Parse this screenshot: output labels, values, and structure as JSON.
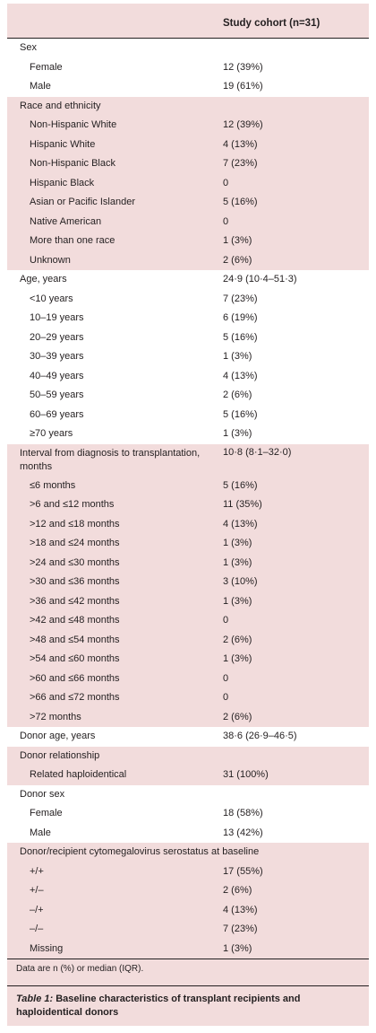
{
  "table": {
    "column_header": "Study cohort (n=31)",
    "rows": [
      {
        "label": "Sex",
        "value": "",
        "indent": false,
        "bg": "white"
      },
      {
        "label": "Female",
        "value": "12 (39%)",
        "indent": true,
        "bg": "white"
      },
      {
        "label": "Male",
        "value": "19 (61%)",
        "indent": true,
        "bg": "white"
      },
      {
        "label": "Race and ethnicity",
        "value": "",
        "indent": false,
        "bg": "pink"
      },
      {
        "label": "Non-Hispanic White",
        "value": "12 (39%)",
        "indent": true,
        "bg": "pink"
      },
      {
        "label": "Hispanic White",
        "value": "4 (13%)",
        "indent": true,
        "bg": "pink"
      },
      {
        "label": "Non-Hispanic Black",
        "value": "7 (23%)",
        "indent": true,
        "bg": "pink"
      },
      {
        "label": "Hispanic Black",
        "value": "0",
        "indent": true,
        "bg": "pink"
      },
      {
        "label": "Asian or Pacific Islander",
        "value": "5 (16%)",
        "indent": true,
        "bg": "pink"
      },
      {
        "label": "Native American",
        "value": "0",
        "indent": true,
        "bg": "pink"
      },
      {
        "label": "More than one race",
        "value": "1 (3%)",
        "indent": true,
        "bg": "pink"
      },
      {
        "label": "Unknown",
        "value": "2 (6%)",
        "indent": true,
        "bg": "pink"
      },
      {
        "label": "Age, years",
        "value": "24·9 (10·4–51·3)",
        "indent": false,
        "bg": "white"
      },
      {
        "label": "<10 years",
        "value": "7 (23%)",
        "indent": true,
        "bg": "white"
      },
      {
        "label": "10–19 years",
        "value": "6 (19%)",
        "indent": true,
        "bg": "white"
      },
      {
        "label": "20–29 years",
        "value": "5 (16%)",
        "indent": true,
        "bg": "white"
      },
      {
        "label": "30–39 years",
        "value": "1 (3%)",
        "indent": true,
        "bg": "white"
      },
      {
        "label": "40–49 years",
        "value": "4 (13%)",
        "indent": true,
        "bg": "white"
      },
      {
        "label": "50–59 years",
        "value": "2 (6%)",
        "indent": true,
        "bg": "white"
      },
      {
        "label": "60–69 years",
        "value": "5 (16%)",
        "indent": true,
        "bg": "white"
      },
      {
        "label": "≥70 years",
        "value": "1 (3%)",
        "indent": true,
        "bg": "white"
      },
      {
        "label": "Interval from diagnosis to transplantation, months",
        "value": "10·8 (8·1–32·0)",
        "indent": false,
        "bg": "pink",
        "tall": true
      },
      {
        "label": "≤6 months",
        "value": "5 (16%)",
        "indent": true,
        "bg": "pink"
      },
      {
        "label": ">6 and ≤12 months",
        "value": "11 (35%)",
        "indent": true,
        "bg": "pink"
      },
      {
        "label": ">12 and ≤18 months",
        "value": "4 (13%)",
        "indent": true,
        "bg": "pink"
      },
      {
        "label": ">18 and ≤24 months",
        "value": "1 (3%)",
        "indent": true,
        "bg": "pink"
      },
      {
        "label": ">24 and ≤30 months",
        "value": "1 (3%)",
        "indent": true,
        "bg": "pink"
      },
      {
        "label": ">30 and ≤36 months",
        "value": "3 (10%)",
        "indent": true,
        "bg": "pink"
      },
      {
        "label": ">36 and ≤42 months",
        "value": "1 (3%)",
        "indent": true,
        "bg": "pink"
      },
      {
        "label": ">42 and ≤48 months",
        "value": "0",
        "indent": true,
        "bg": "pink"
      },
      {
        "label": ">48 and ≤54 months",
        "value": "2 (6%)",
        "indent": true,
        "bg": "pink"
      },
      {
        "label": ">54 and ≤60 months",
        "value": "1 (3%)",
        "indent": true,
        "bg": "pink"
      },
      {
        "label": ">60 and ≤66 months",
        "value": "0",
        "indent": true,
        "bg": "pink"
      },
      {
        "label": ">66 and ≤72 months",
        "value": "0",
        "indent": true,
        "bg": "pink"
      },
      {
        "label": ">72 months",
        "value": "2 (6%)",
        "indent": true,
        "bg": "pink"
      },
      {
        "label": "Donor age, years",
        "value": "38·6 (26·9–46·5)",
        "indent": false,
        "bg": "white"
      },
      {
        "label": "Donor relationship",
        "value": "",
        "indent": false,
        "bg": "pink"
      },
      {
        "label": "Related haploidentical",
        "value": "31 (100%)",
        "indent": true,
        "bg": "pink"
      },
      {
        "label": "Donor sex",
        "value": "",
        "indent": false,
        "bg": "white"
      },
      {
        "label": "Female",
        "value": "18 (58%)",
        "indent": true,
        "bg": "white"
      },
      {
        "label": "Male",
        "value": "13 (42%)",
        "indent": true,
        "bg": "white"
      },
      {
        "label": "Donor/recipient cytomegalovirus serostatus at baseline",
        "value": "",
        "indent": false,
        "bg": "pink"
      },
      {
        "label": "+/+",
        "value": "17 (55%)",
        "indent": true,
        "bg": "pink"
      },
      {
        "label": "+/–",
        "value": "2 (6%)",
        "indent": true,
        "bg": "pink"
      },
      {
        "label": "–/+",
        "value": "4 (13%)",
        "indent": true,
        "bg": "pink"
      },
      {
        "label": "–/–",
        "value": "7 (23%)",
        "indent": true,
        "bg": "pink"
      },
      {
        "label": "Missing",
        "value": "1 (3%)",
        "indent": true,
        "bg": "pink"
      }
    ],
    "footnote": "Data are n (%) or median (IQR).",
    "caption_number": "Table 1:",
    "caption_text": " Baseline characteristics of transplant recipients and haploidentical donors"
  }
}
